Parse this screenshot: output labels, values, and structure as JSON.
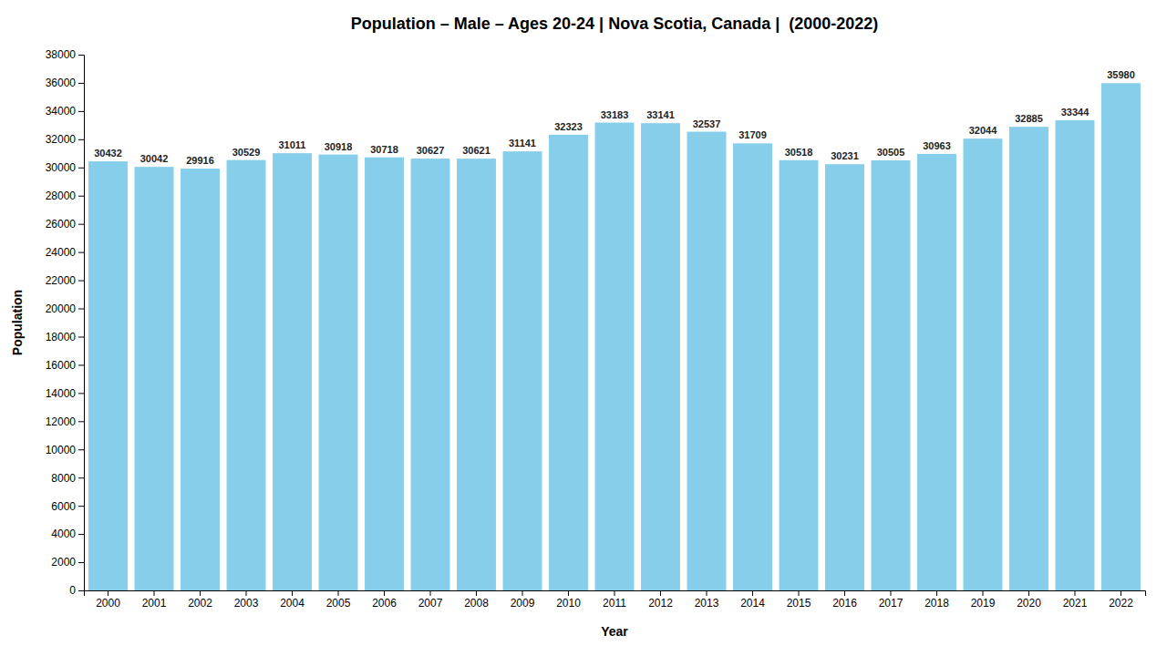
{
  "chart_data": {
    "type": "bar",
    "title": "Population – Male – Ages 20-24 | Nova Scotia, Canada |  (2000-2022)",
    "xlabel": "Year",
    "ylabel": "Population",
    "categories": [
      "2000",
      "2001",
      "2002",
      "2003",
      "2004",
      "2005",
      "2006",
      "2007",
      "2008",
      "2009",
      "2010",
      "2011",
      "2012",
      "2013",
      "2014",
      "2015",
      "2016",
      "2017",
      "2018",
      "2019",
      "2020",
      "2021",
      "2022"
    ],
    "values": [
      30432,
      30042,
      29916,
      30529,
      31011,
      30918,
      30718,
      30627,
      30621,
      31141,
      32323,
      33183,
      33141,
      32537,
      31709,
      30518,
      30231,
      30505,
      30963,
      32044,
      32885,
      33344,
      35980
    ],
    "color": "#87CEEB",
    "ylim": [
      0,
      38000
    ],
    "yticks": [
      0,
      2000,
      4000,
      6000,
      8000,
      10000,
      12000,
      14000,
      16000,
      18000,
      20000,
      22000,
      24000,
      26000,
      28000,
      30000,
      32000,
      34000,
      36000,
      38000
    ],
    "grid": false,
    "data_labels": true
  }
}
